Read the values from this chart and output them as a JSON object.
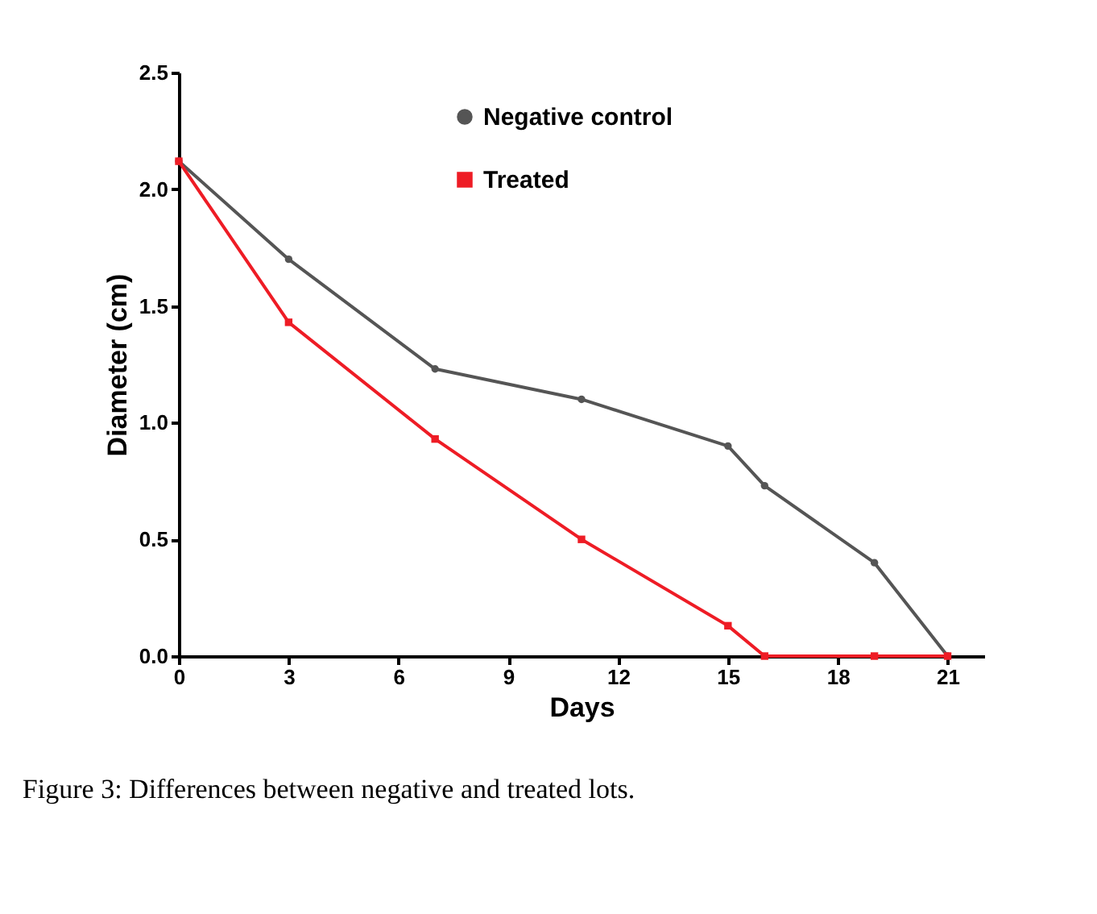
{
  "chart_data": {
    "type": "line",
    "xlabel": "Days",
    "ylabel": "Diameter (cm)",
    "x": [
      0,
      3,
      7,
      11,
      15,
      16,
      19,
      21
    ],
    "series": [
      {
        "name": "Negative control",
        "color": "#555555",
        "marker": "circle",
        "values": [
          2.12,
          1.7,
          1.23,
          1.1,
          0.9,
          0.73,
          0.4,
          0.0
        ]
      },
      {
        "name": "Treated",
        "color": "#ee1c25",
        "marker": "square",
        "values": [
          2.12,
          1.43,
          0.93,
          0.5,
          0.13,
          0.0,
          0.0,
          0.0
        ]
      }
    ],
    "xlim": [
      0,
      22
    ],
    "xticks": [
      0,
      3,
      6,
      9,
      12,
      15,
      18,
      21
    ],
    "ylim": [
      0,
      2.5
    ],
    "yticks": [
      {
        "value": 0,
        "label": "0.0"
      },
      0.5,
      {
        "value": 1,
        "label": "1.0"
      },
      1.5,
      {
        "value": 2,
        "label": "2.0"
      },
      2.5
    ],
    "grid": false,
    "legend": "top",
    "line_style": "solid",
    "annotations": [
      "Figure 3: Differences between negative and treated lots."
    ]
  }
}
